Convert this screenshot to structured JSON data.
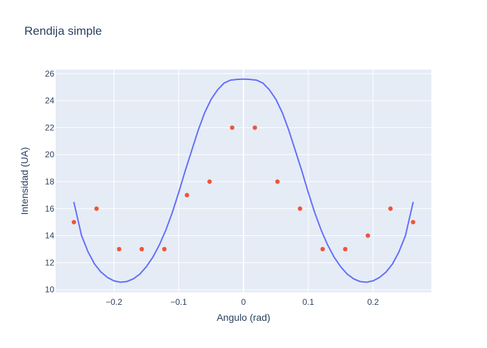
{
  "chart_data": {
    "type": "scatter",
    "title": "Rendija simple",
    "xlabel": "Angulo (rad)",
    "ylabel": "Intensidad (UA)",
    "xlim": [
      -0.29,
      0.29
    ],
    "ylim": [
      9.8,
      26.3
    ],
    "grid": true,
    "legend": "none",
    "x_ticks": [
      -0.2,
      -0.1,
      0,
      0.1,
      0.2
    ],
    "x_tick_labels": [
      "−0.2",
      "−0.1",
      "0",
      "0.1",
      "0.2"
    ],
    "y_ticks": [
      10,
      12,
      14,
      16,
      18,
      20,
      22,
      24,
      26
    ],
    "y_tick_labels": [
      "10",
      "12",
      "14",
      "16",
      "18",
      "20",
      "22",
      "24",
      "26"
    ],
    "series": [
      {
        "mode": "markers",
        "color": "#ef553b",
        "x": [
          -0.2618,
          -0.2269,
          -0.192,
          -0.1571,
          -0.1222,
          -0.0873,
          -0.0524,
          -0.0175,
          0.0175,
          0.0524,
          0.0873,
          0.1222,
          0.1571,
          0.192,
          0.2269,
          0.2618
        ],
        "y": [
          15,
          16,
          13,
          13,
          13,
          17,
          18,
          22,
          22,
          18,
          16,
          13,
          13,
          14,
          16,
          15
        ]
      },
      {
        "mode": "lines",
        "color": "#636efa",
        "x": [
          -0.262,
          -0.25,
          -0.24,
          -0.23,
          -0.22,
          -0.21,
          -0.2,
          -0.19,
          -0.18,
          -0.17,
          -0.16,
          -0.15,
          -0.14,
          -0.13,
          -0.12,
          -0.11,
          -0.1,
          -0.09,
          -0.08,
          -0.07,
          -0.06,
          -0.05,
          -0.04,
          -0.03,
          -0.02,
          -0.01,
          0,
          0.01,
          0.02,
          0.03,
          0.04,
          0.05,
          0.06,
          0.07,
          0.08,
          0.09,
          0.1,
          0.11,
          0.12,
          0.13,
          0.14,
          0.15,
          0.16,
          0.17,
          0.18,
          0.19,
          0.2,
          0.21,
          0.22,
          0.23,
          0.24,
          0.25,
          0.262
        ],
        "y": [
          16.5,
          14.0,
          12.8,
          11.9,
          11.3,
          10.9,
          10.65,
          10.55,
          10.6,
          10.8,
          11.15,
          11.7,
          12.4,
          13.3,
          14.4,
          15.7,
          17.2,
          18.8,
          20.3,
          21.8,
          23.1,
          24.1,
          24.8,
          25.3,
          25.52,
          25.57,
          25.6,
          25.57,
          25.52,
          25.3,
          24.8,
          24.1,
          23.1,
          21.8,
          20.3,
          18.8,
          17.2,
          15.7,
          14.4,
          13.3,
          12.4,
          11.7,
          11.15,
          10.8,
          10.6,
          10.55,
          10.65,
          10.9,
          11.3,
          11.9,
          12.8,
          14.0,
          16.5
        ]
      }
    ]
  }
}
